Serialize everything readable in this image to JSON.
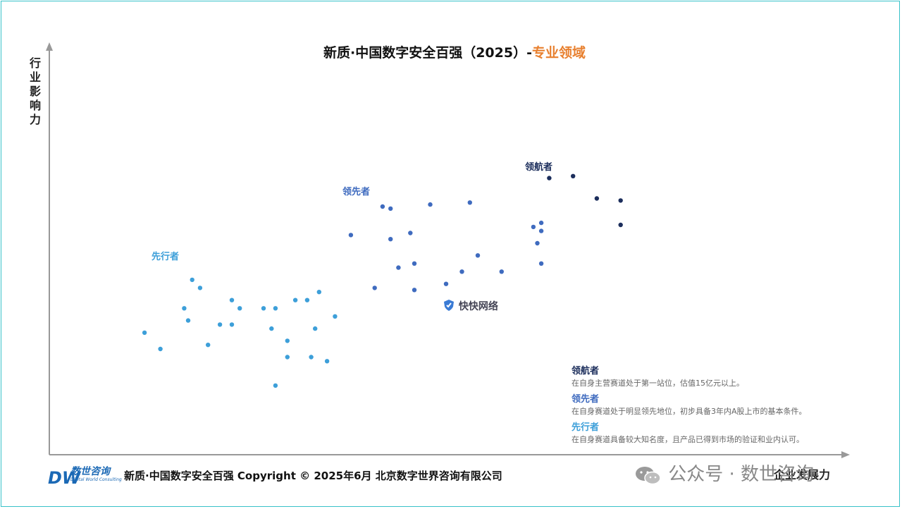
{
  "chart_data": {
    "type": "scatter",
    "title": "新质·中国数字安全百强（2025）-",
    "title_accent": "专业领域",
    "xlabel": "企业发展力",
    "ylabel": "行业影响力",
    "grid": false,
    "xlim": [
      0,
      100
    ],
    "ylim": [
      0,
      100
    ],
    "groups": [
      {
        "name": "先行者",
        "color": "#3d9fd9",
        "label_pos": [
          13,
          49
        ],
        "points": [
          [
            12,
            30
          ],
          [
            14,
            26
          ],
          [
            17,
            36
          ],
          [
            17.5,
            33
          ],
          [
            18,
            43
          ],
          [
            19,
            41
          ],
          [
            20,
            27
          ],
          [
            21.5,
            32
          ],
          [
            23,
            32
          ],
          [
            23,
            38
          ],
          [
            24,
            36
          ],
          [
            27,
            36
          ],
          [
            28,
            31
          ],
          [
            28.5,
            17
          ],
          [
            28.5,
            36
          ],
          [
            30,
            28
          ],
          [
            30,
            24
          ],
          [
            31,
            38
          ],
          [
            32.5,
            38
          ],
          [
            33,
            24
          ],
          [
            33.5,
            31
          ],
          [
            34,
            40
          ],
          [
            35,
            23
          ],
          [
            36,
            34
          ]
        ]
      },
      {
        "name": "领先者",
        "color": "#3f6bbf",
        "label_pos": [
          37,
          65
        ],
        "points": [
          [
            38,
            54
          ],
          [
            41,
            41
          ],
          [
            42,
            61
          ],
          [
            43,
            60.5
          ],
          [
            43,
            53
          ],
          [
            44,
            46
          ],
          [
            45.5,
            54.5
          ],
          [
            46,
            47
          ],
          [
            46,
            40.5
          ],
          [
            48,
            61.5
          ],
          [
            50,
            42
          ],
          [
            52,
            45
          ],
          [
            53,
            62
          ],
          [
            54,
            49
          ],
          [
            57,
            45
          ],
          [
            61,
            56
          ],
          [
            61.5,
            52
          ],
          [
            62,
            55
          ],
          [
            62,
            57
          ],
          [
            62,
            47
          ]
        ]
      },
      {
        "name": "领航者",
        "color": "#1c2e5c",
        "label_pos": [
          60,
          71
        ],
        "points": [
          [
            63,
            68
          ],
          [
            66,
            68.5
          ],
          [
            69,
            63
          ],
          [
            72,
            62.5
          ],
          [
            72,
            56.5
          ]
        ]
      }
    ]
  },
  "legend": [
    {
      "title": "领航者",
      "desc": "在自身主营赛道处于第一站位，估值15亿元以上。",
      "color": "#1c2e5c"
    },
    {
      "title": "领先者",
      "desc": "在自身赛道处于明显领先地位，初步具备3年内A股上市的基本条件。",
      "color": "#3f6bbf"
    },
    {
      "title": "先行者",
      "desc": "在自身赛道具备较大知名度，且产品已得到市场的验证和业内认可。",
      "color": "#3d9fd9"
    }
  ],
  "footer": "新质·中国数字安全百强 Copyright © 2025年6月 北京数字世界咨询有限公司",
  "logo": {
    "letters": "DW",
    "cn": "数世咨询",
    "en": "Digital World Consulting"
  },
  "watermark": {
    "icon": "wechat-icon",
    "text": "公众号 · 数世咨询"
  },
  "overlay_mark": {
    "icon": "shield-icon",
    "text": "快快网络"
  }
}
